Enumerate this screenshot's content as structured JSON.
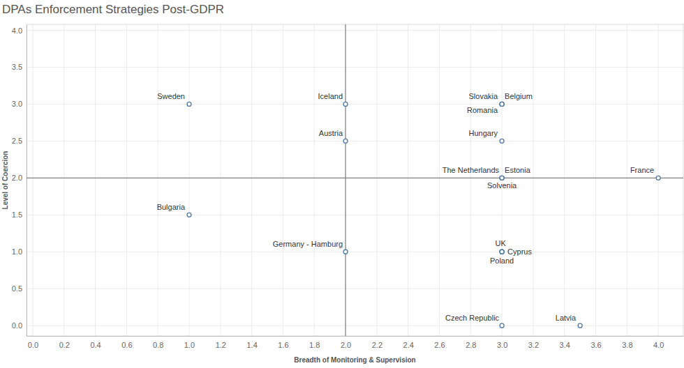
{
  "chart_data": {
    "type": "scatter",
    "title": "DPAs Enforcement Strategies Post-GDPR",
    "x_label": "Breadth of Monitoring & Supervision",
    "y_label": "Level of Coercion",
    "labels": [
      "Sweden",
      "Iceland",
      "Slovakia",
      "Belgium",
      "Romania",
      "Austria",
      "Hungary",
      "The Netherlands",
      "Estonia",
      "Solvenia",
      "France",
      "Bulgaria",
      "Germany - Hamburg",
      "UK",
      "Cyprus",
      "Poland",
      "Czech Republic",
      "Latvia"
    ],
    "x": [
      1,
      2,
      3,
      3,
      3,
      2,
      3,
      3,
      3,
      3,
      4,
      1,
      2,
      3,
      3,
      3,
      3,
      3.5
    ],
    "values": [
      3,
      3,
      3,
      3,
      3,
      2.5,
      2.5,
      2,
      2,
      2,
      2,
      1.5,
      1,
      1,
      1,
      1,
      0,
      0
    ],
    "reference_lines": {
      "x": 2,
      "y": 2
    },
    "xlim": [
      -0.04,
      4.16
    ],
    "ylim": [
      -0.14,
      4.08
    ],
    "xticks": [
      {
        "value": 0,
        "label": "0.0"
      },
      0.2,
      0.4,
      0.6,
      0.8,
      {
        "value": 1,
        "label": "1.0"
      },
      1.2,
      1.4,
      1.6,
      1.8,
      {
        "value": 2,
        "label": "2.0"
      },
      2.2,
      2.4,
      2.6,
      2.8,
      {
        "value": 3,
        "label": "3.0"
      },
      3.2,
      3.4,
      3.6,
      3.8,
      {
        "value": 4,
        "label": "4.0"
      }
    ],
    "yticks": [
      {
        "value": 0,
        "label": "0.0"
      },
      0.5,
      {
        "value": 1,
        "label": "1.0"
      },
      1.5,
      {
        "value": 2,
        "label": "2.0"
      },
      2.5,
      {
        "value": 3,
        "label": "3.0"
      },
      3.5,
      {
        "value": 4,
        "label": "4.0"
      }
    ],
    "grid": true,
    "color": "#4e79a7",
    "marker": "circle"
  }
}
